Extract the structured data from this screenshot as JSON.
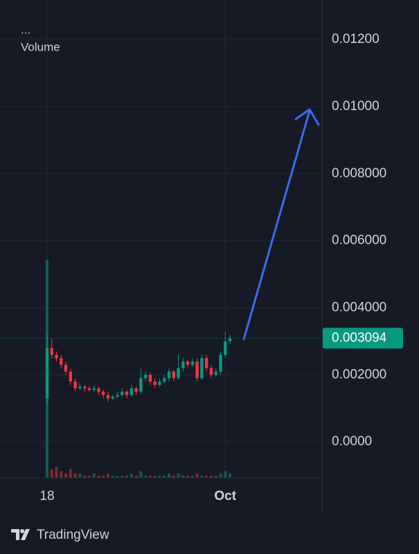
{
  "chart_data": {
    "type": "candlestick",
    "indicator_title": "...",
    "volume_label": "Volume",
    "brand": "TradingView",
    "categories": [
      "18",
      null,
      null,
      null,
      null,
      null,
      null,
      null,
      null,
      null,
      null,
      null,
      null,
      null,
      null,
      null,
      null,
      null,
      null,
      null,
      null,
      null,
      null,
      null,
      null,
      null,
      null,
      null,
      null,
      null,
      null,
      null,
      null,
      null,
      null,
      null,
      null,
      null,
      "Oct",
      null
    ],
    "open": [
      0.0013,
      0.0028,
      0.0026,
      0.0025,
      0.0023,
      0.0021,
      0.0018,
      0.0016,
      0.00165,
      0.0016,
      0.00155,
      0.0016,
      0.0015,
      0.0014,
      0.0013,
      0.00135,
      0.0014,
      0.0015,
      0.0014,
      0.0016,
      0.0015,
      0.0019,
      0.002,
      0.0018,
      0.0017,
      0.0018,
      0.0019,
      0.0021,
      0.0019,
      0.0022,
      0.0024,
      0.0023,
      0.0024,
      0.0019,
      0.0025,
      0.0022,
      0.002,
      0.0021,
      0.0026,
      0.003
    ],
    "high": [
      0.0032,
      0.0031,
      0.0027,
      0.0026,
      0.0024,
      0.0022,
      0.0019,
      0.00175,
      0.0017,
      0.00165,
      0.0017,
      0.00165,
      0.00155,
      0.0015,
      0.0014,
      0.0015,
      0.0016,
      0.00155,
      0.0017,
      0.00165,
      0.0022,
      0.0021,
      0.00205,
      0.0019,
      0.0019,
      0.002,
      0.0022,
      0.00215,
      0.0026,
      0.0025,
      0.00245,
      0.0025,
      0.0025,
      0.0026,
      0.0026,
      0.0023,
      0.0022,
      0.0027,
      0.0033,
      0.0032
    ],
    "low": [
      0.0011,
      0.0025,
      0.0024,
      0.0022,
      0.002,
      0.0017,
      0.0015,
      0.00155,
      0.0015,
      0.0015,
      0.0015,
      0.0014,
      0.0013,
      0.0012,
      0.00125,
      0.0013,
      0.00135,
      0.0013,
      0.00135,
      0.0014,
      0.00145,
      0.0018,
      0.0017,
      0.0016,
      0.00165,
      0.00175,
      0.0018,
      0.0018,
      0.00185,
      0.0021,
      0.0022,
      0.00225,
      0.0018,
      0.00185,
      0.0021,
      0.0019,
      0.00195,
      0.002,
      0.0025,
      0.0029
    ],
    "close": [
      0.0028,
      0.0026,
      0.0025,
      0.0023,
      0.0021,
      0.0018,
      0.0016,
      0.00165,
      0.0016,
      0.00155,
      0.0016,
      0.0015,
      0.0014,
      0.0013,
      0.00135,
      0.0014,
      0.0015,
      0.0014,
      0.0016,
      0.0015,
      0.0019,
      0.002,
      0.0018,
      0.0017,
      0.0018,
      0.0019,
      0.0021,
      0.0019,
      0.0022,
      0.0024,
      0.0023,
      0.0024,
      0.0019,
      0.0025,
      0.0022,
      0.002,
      0.0021,
      0.0026,
      0.003,
      0.003094
    ],
    "volume": [
      100,
      4,
      5,
      3,
      2,
      4,
      2,
      2,
      1,
      1,
      2,
      1,
      1,
      2,
      1,
      1,
      1,
      1,
      2,
      1,
      3,
      1,
      1,
      1,
      1,
      1,
      2,
      1,
      2,
      1,
      1,
      1,
      2,
      1,
      1,
      1,
      1,
      2,
      3,
      2
    ],
    "vlim": [
      0,
      100
    ],
    "up_color": "#089981",
    "down_color": "#f23645",
    "ylim": [
      -0.00107,
      0.01318
    ],
    "yticks": [
      {
        "value": 0.012,
        "label": "0.01200"
      },
      {
        "value": 0.01,
        "label": "0.01000"
      },
      {
        "value": 0.008,
        "label": "0.008000"
      },
      {
        "value": 0.006,
        "label": "0.006000"
      },
      {
        "value": 0.004,
        "label": "0.004000"
      },
      {
        "value": 0.002,
        "label": "0.002000"
      },
      {
        "value": 0,
        "label": "0.0000"
      }
    ],
    "grid": true
  }
}
